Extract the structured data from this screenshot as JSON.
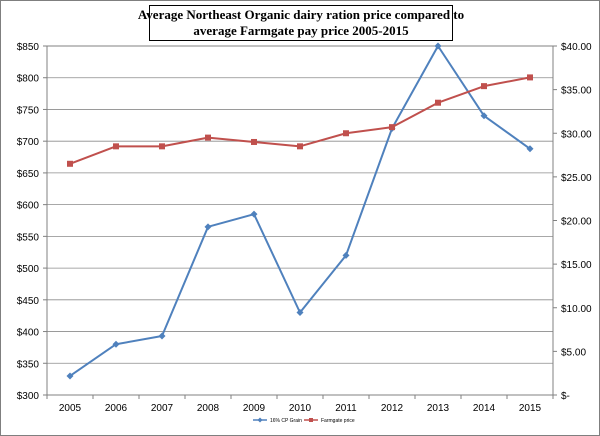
{
  "chart_data": {
    "type": "line",
    "title": [
      "Average Northeast Organic  dairy ration price  compared to",
      "average Farmgate pay price 2005-2015"
    ],
    "categories": [
      "2005",
      "2006",
      "2007",
      "2008",
      "2009",
      "2010",
      "2011",
      "2012",
      "2013",
      "2014",
      "2015"
    ],
    "y_left": {
      "min": 300,
      "max": 850,
      "step": 50,
      "tick_labels": [
        "$300",
        "$350",
        "$400",
        "$450",
        "$500",
        "$550",
        "$600",
        "$650",
        "$700",
        "$750",
        "$800",
        "$850"
      ]
    },
    "y_right": {
      "min": 0,
      "max": 40,
      "step": 5,
      "tick_labels": [
        "$-",
        "$5.00",
        "$10.00",
        "$15.00",
        "$20.00",
        "$25.00",
        "$30.00",
        "$35.00",
        "$40.00"
      ]
    },
    "grid": "horizontal",
    "legend_position": "bottom",
    "series": [
      {
        "name": "16% CP Grain",
        "axis": "left",
        "color": "#4f81bd",
        "marker": "diamond",
        "values": [
          330,
          380,
          393,
          565,
          585,
          430,
          520,
          720,
          850,
          740,
          688
        ]
      },
      {
        "name": "Farmgate price",
        "axis": "right",
        "color": "#c0504d",
        "marker": "square",
        "values": [
          26.5,
          28.5,
          28.5,
          29.5,
          29.0,
          28.5,
          30.0,
          30.7,
          33.5,
          35.4,
          36.4
        ]
      }
    ]
  }
}
